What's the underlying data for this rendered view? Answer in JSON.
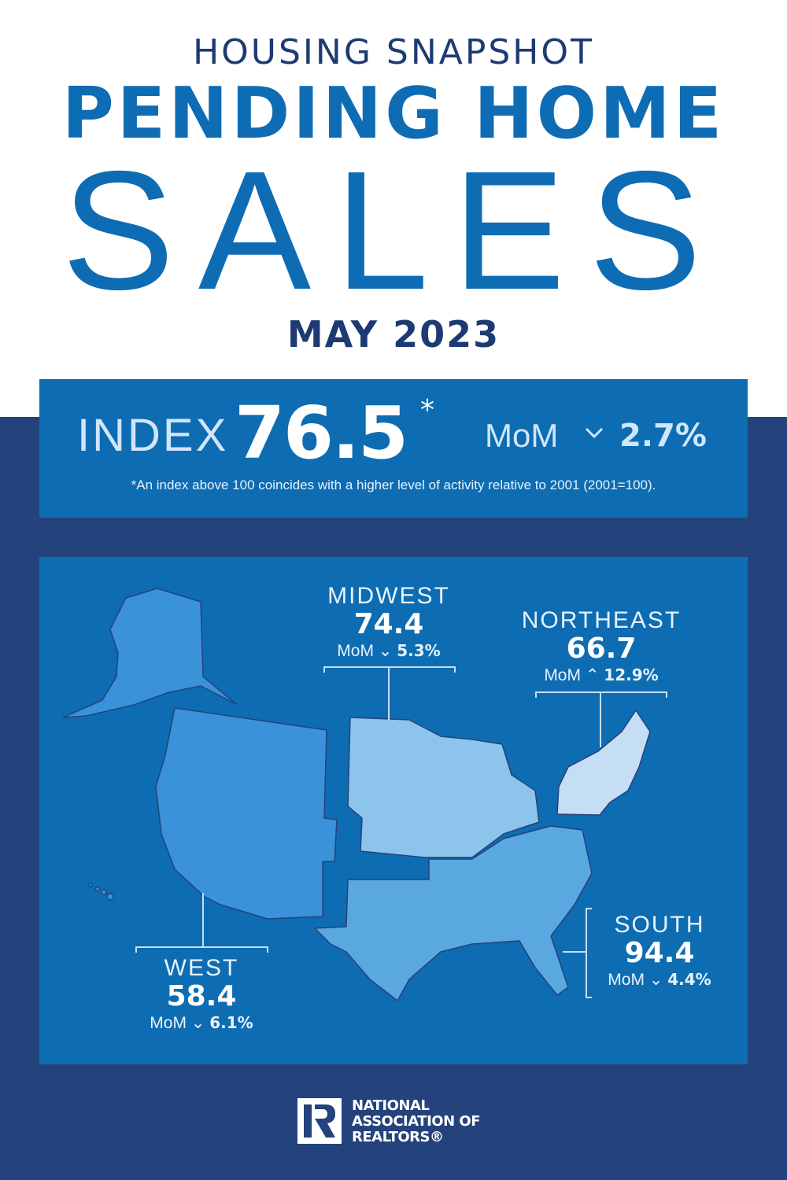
{
  "header": {
    "kicker": "HOUSING SNAPSHOT",
    "title_line1": "PENDING HOME",
    "title_line2": "SALES",
    "period": "MAY 2023"
  },
  "index": {
    "label": "INDEX",
    "value": "76.5",
    "asterisk": "*",
    "mom_label": "MoM",
    "direction": "down",
    "arrow_glyph": "⌄",
    "mom_change": "2.7%",
    "footnote": "*An index above 100 coincides with a higher level of activity relative to 2001 (2001=100)."
  },
  "regions": {
    "midwest": {
      "name": "MIDWEST",
      "value": "74.4",
      "mom_label": "MoM",
      "direction": "down",
      "arrow": "⌄",
      "change": "5.3%",
      "color": "#8cc4ec"
    },
    "northeast": {
      "name": "NORTHEAST",
      "value": "66.7",
      "mom_label": "MoM",
      "direction": "up",
      "arrow": "⌃",
      "change": "12.9%",
      "color": "#c6def3"
    },
    "south": {
      "name": "SOUTH",
      "value": "94.4",
      "mom_label": "MoM",
      "direction": "down",
      "arrow": "⌄",
      "change": "4.4%",
      "color": "#5aa8e0"
    },
    "west": {
      "name": "WEST",
      "value": "58.4",
      "mom_label": "MoM",
      "direction": "down",
      "arrow": "⌄",
      "change": "6.1%",
      "color": "#3a92d8"
    }
  },
  "footer": {
    "logo_text_line1": "NATIONAL",
    "logo_text_line2": "ASSOCIATION OF",
    "logo_text_line3": "REALTORS®"
  },
  "colors": {
    "navy": "#24437c",
    "blue": "#0e6cb2",
    "title": "#0e6cb5"
  }
}
